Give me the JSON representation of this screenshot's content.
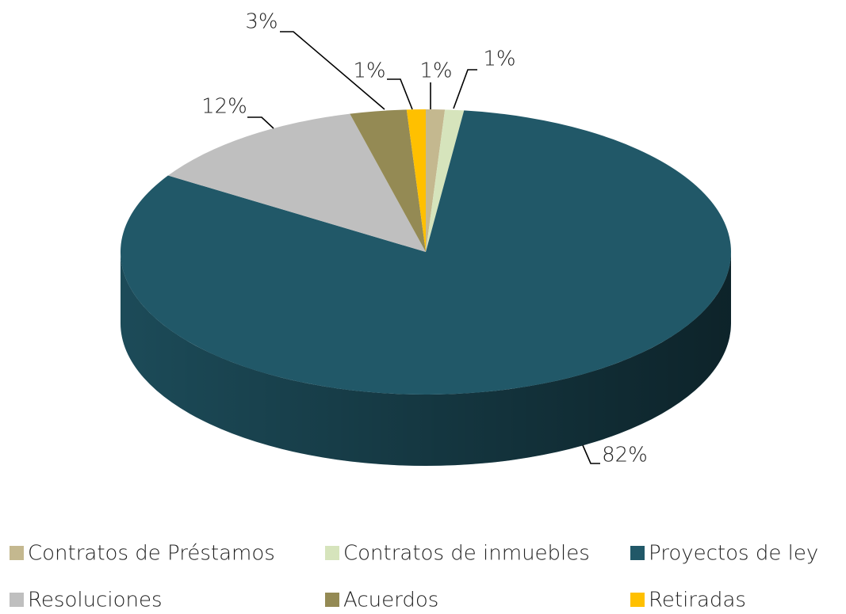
{
  "chart_data": {
    "type": "pie",
    "categories": [
      "Contratos de Préstamos",
      "Contratos de inmuebles",
      "Proyectos de ley",
      "Resoluciones",
      "Acuerdos",
      "Retiradas"
    ],
    "values": [
      1,
      1,
      82,
      12,
      3,
      1
    ],
    "value_labels": [
      "1%",
      "1%",
      "82%",
      "12%",
      "3%",
      "1%"
    ],
    "colors": [
      "#c4b88f",
      "#d6e4bc",
      "#215868",
      "#bfbfbf",
      "#948a54",
      "#ffc000"
    ],
    "legend": "bottom"
  }
}
